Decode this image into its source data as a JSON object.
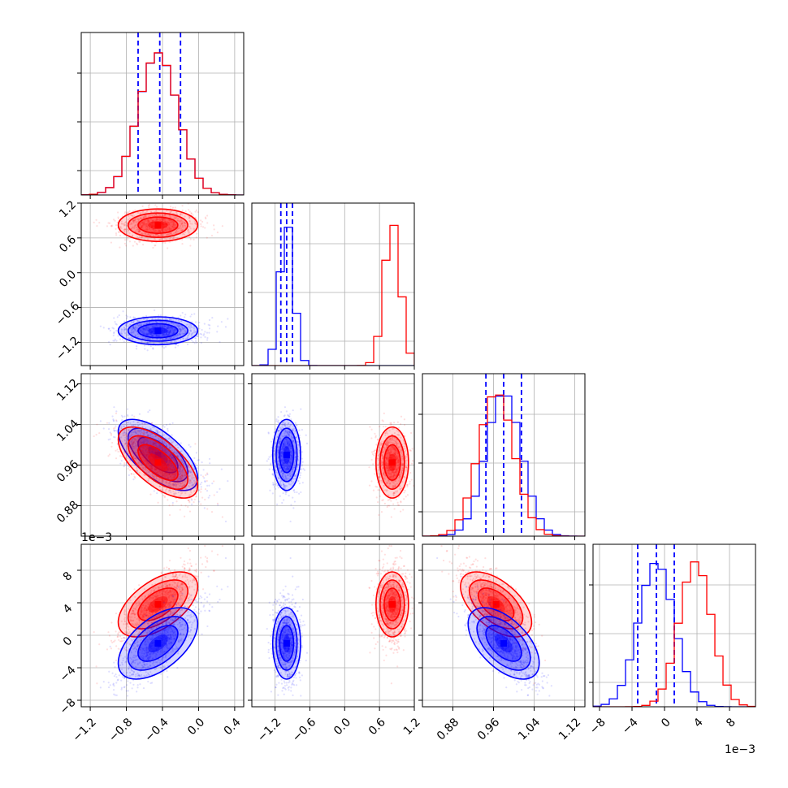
{
  "chart_data": {
    "type": "corner",
    "colors": {
      "series_a": "#0000ff",
      "series_b": "#ff0000"
    },
    "grid": true,
    "parameters": [
      {
        "range": [
          -1.3,
          0.5
        ],
        "ticks": [
          -1.2,
          -0.8,
          -0.4,
          0.0,
          0.4
        ],
        "tick_labels": [
          "−1.2",
          "−0.8",
          "−0.4",
          "0.0",
          "0.4"
        ]
      },
      {
        "range": [
          -1.6,
          1.2
        ],
        "ticks": [
          -1.2,
          -0.6,
          0.0,
          0.6,
          1.2
        ],
        "tick_labels": [
          "−1.2",
          "−0.6",
          "0.0",
          "0.6",
          "1.2"
        ]
      },
      {
        "range": [
          0.82,
          1.14
        ],
        "ticks": [
          0.88,
          0.96,
          1.04,
          1.12
        ],
        "tick_labels": [
          "0.88",
          "0.96",
          "1.04",
          "1.12"
        ]
      },
      {
        "range": [
          -0.0088,
          0.0112
        ],
        "ticks": [
          -0.008,
          -0.004,
          0.0,
          0.004,
          0.008
        ],
        "tick_labels": [
          "−8",
          "−4",
          "0",
          "4",
          "8"
        ],
        "offset_label": "1e−3"
      }
    ],
    "series": [
      {
        "color": "series_a",
        "mean": [
          -0.45,
          -1.0,
          0.98,
          -0.001
        ],
        "std": [
          0.22,
          0.12,
          0.035,
          0.0022
        ],
        "quantiles": [
          [
            -0.67,
            -0.43,
            -0.2
          ],
          [
            -1.1,
            -1.0,
            -0.9
          ],
          [
            0.945,
            0.98,
            1.015
          ],
          [
            -0.0033,
            -0.001,
            0.0012
          ]
        ]
      },
      {
        "color": "series_b",
        "mean": [
          -0.45,
          0.82,
          0.965,
          0.0038
        ],
        "std": [
          0.22,
          0.14,
          0.035,
          0.002
        ],
        "quantiles": []
      }
    ]
  }
}
